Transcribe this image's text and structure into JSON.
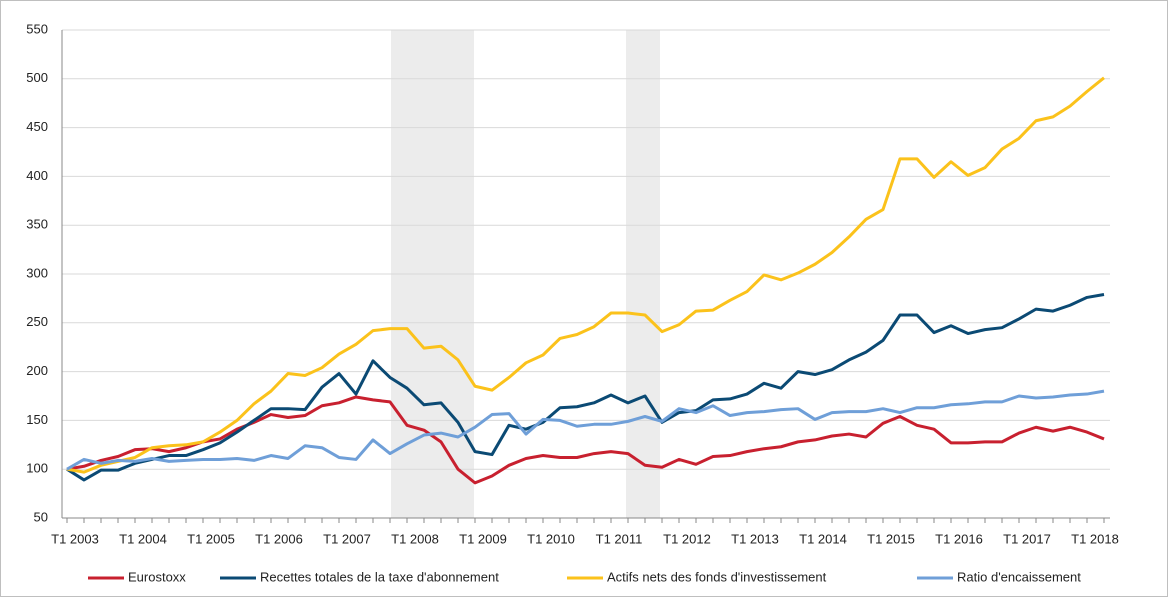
{
  "chart_data": {
    "type": "line",
    "categories": [
      "T1 2003",
      null,
      null,
      null,
      "T1 2004",
      null,
      null,
      null,
      "T1 2005",
      null,
      null,
      null,
      "T1 2006",
      null,
      null,
      null,
      "T1 2007",
      null,
      null,
      null,
      "T1 2008",
      null,
      null,
      null,
      "T1 2009",
      null,
      null,
      null,
      "T1 2010",
      null,
      null,
      null,
      "T1 2011",
      null,
      null,
      null,
      "T1 2012",
      null,
      null,
      null,
      "T1 2013",
      null,
      null,
      null,
      "T1 2014",
      null,
      null,
      null,
      "T1 2015",
      null,
      null,
      null,
      "T1 2016",
      null,
      null,
      null,
      "T1 2017",
      null,
      null,
      null,
      "T1 2018",
      null
    ],
    "series": [
      {
        "name": "Eurostoxx",
        "color": "#c8202f",
        "values": [
          100,
          103,
          109,
          113,
          120,
          121,
          118,
          122,
          128,
          131,
          141,
          148,
          156,
          153,
          155,
          165,
          168,
          174,
          171,
          169,
          145,
          140,
          128,
          100,
          86,
          93,
          104,
          111,
          114,
          112,
          112,
          116,
          118,
          116,
          104,
          102,
          110,
          105,
          113,
          114,
          118,
          121,
          123,
          128,
          130,
          134,
          136,
          133,
          147,
          154,
          145,
          141,
          127,
          127,
          128,
          128,
          137,
          143,
          139,
          143,
          138,
          131
        ]
      },
      {
        "name": "Recettes totales de la taxe d'abonnement",
        "color": "#0b4a74",
        "values": [
          100,
          89,
          99,
          99,
          106,
          110,
          114,
          114,
          120,
          127,
          138,
          150,
          162,
          162,
          161,
          184,
          198,
          177,
          211,
          194,
          183,
          166,
          168,
          148,
          118,
          115,
          145,
          141,
          148,
          163,
          164,
          168,
          176,
          168,
          175,
          148,
          158,
          160,
          171,
          172,
          177,
          188,
          183,
          200,
          197,
          202,
          212,
          220,
          232,
          258,
          258,
          240,
          247,
          239,
          243,
          245,
          254,
          264,
          262,
          268,
          276,
          279
        ]
      },
      {
        "name": "Actifs nets des fonds d'investissement",
        "color": "#fbc21b",
        "values": [
          100,
          97,
          104,
          108,
          112,
          122,
          124,
          125,
          128,
          138,
          150,
          167,
          180,
          198,
          196,
          204,
          218,
          228,
          242,
          244,
          244,
          224,
          226,
          212,
          185,
          181,
          194,
          209,
          217,
          234,
          238,
          246,
          260,
          260,
          258,
          241,
          248,
          262,
          263,
          273,
          282,
          299,
          294,
          301,
          310,
          322,
          338,
          356,
          366,
          418,
          418,
          399,
          415,
          401,
          409,
          428,
          439,
          457,
          461,
          472,
          487,
          501
        ]
      },
      {
        "name": "Ratio d'encaissement",
        "color": "#6f9fd8",
        "values": [
          100,
          110,
          106,
          109,
          108,
          111,
          108,
          109,
          110,
          110,
          111,
          109,
          114,
          111,
          124,
          122,
          112,
          110,
          130,
          116,
          126,
          135,
          137,
          133,
          143,
          156,
          157,
          136,
          151,
          150,
          144,
          146,
          146,
          149,
          154,
          149,
          162,
          158,
          165,
          155,
          158,
          159,
          161,
          162,
          151,
          158,
          159,
          159,
          162,
          158,
          163,
          163,
          166,
          167,
          169,
          169,
          175,
          173,
          174,
          176,
          177,
          180
        ]
      }
    ],
    "ylim": [
      50,
      550
    ],
    "yticks": [
      50,
      100,
      150,
      200,
      250,
      300,
      350,
      400,
      450,
      500,
      550
    ],
    "grid": true,
    "legend": "bottom"
  }
}
